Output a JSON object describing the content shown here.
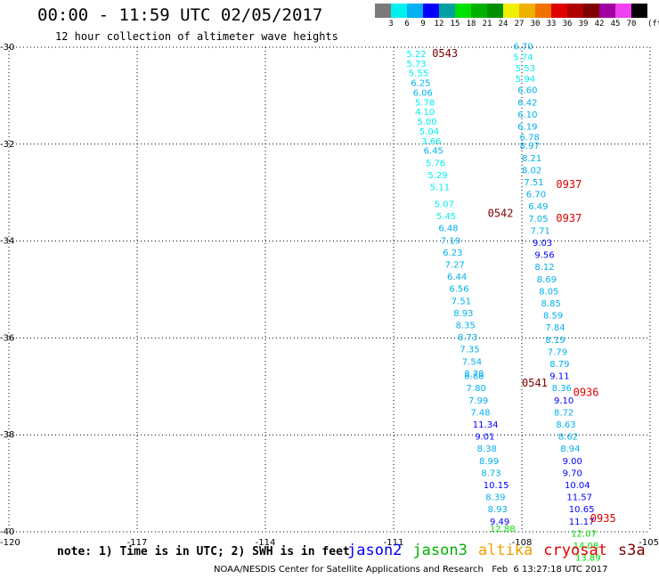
{
  "header": {
    "title": "00:00 - 11:59 UTC 02/05/2017",
    "subtitle": "12 hour collection of altimeter wave heights"
  },
  "color_scale": {
    "labels": [
      "3",
      "6",
      "9",
      "12",
      "15",
      "18",
      "21",
      "24",
      "27",
      "30",
      "33",
      "36",
      "39",
      "42",
      "45",
      "70"
    ],
    "unit": "(ft)",
    "colors": [
      "#7a7a7a",
      "#00f0f0",
      "#00b0f0",
      "#0000ff",
      "#00a0a0",
      "#00e000",
      "#00b000",
      "#009000",
      "#f0f000",
      "#f0b000",
      "#f07000",
      "#e00000",
      "#b00000",
      "#800000",
      "#a000a0",
      "#f040f0",
      "#000000"
    ]
  },
  "footer": {
    "note": "note: 1) Time is in UTC; 2) SWH is in feet",
    "credit": "NOAA/NESDIS Center for Satellite Applications and Research   Feb  6 13:27:18 UTC 2017"
  },
  "legend": [
    {
      "name": "jason2",
      "color": "#0000ff"
    },
    {
      "name": "jason3",
      "color": "#00b000"
    },
    {
      "name": "altika",
      "color": "#f0a000"
    },
    {
      "name": "cryosat",
      "color": "#e00000"
    },
    {
      "name": "s3a",
      "color": "#800000"
    }
  ],
  "chart_data": {
    "type": "scatter",
    "x_ticks": [
      "-120",
      "-117",
      "-114",
      "-111",
      "-108",
      "-105"
    ],
    "y_ticks": [
      "-30",
      "-32",
      "-34",
      "-36",
      "-38",
      "-40"
    ],
    "xlim": [
      -120,
      -105
    ],
    "ylim": [
      -40,
      -30
    ],
    "grid": true,
    "time_labels": [
      {
        "text": "0543",
        "lon": -110.1,
        "lat": -30.2,
        "color": "#800000"
      },
      {
        "text": "0542",
        "lon": -108.8,
        "lat": -33.5,
        "color": "#800000"
      },
      {
        "text": "0541",
        "lon": -108.0,
        "lat": -37.0,
        "color": "#800000"
      },
      {
        "text": "0937",
        "lon": -107.2,
        "lat": -32.9,
        "color": "#e00000"
      },
      {
        "text": "0937",
        "lon": -107.2,
        "lat": -33.6,
        "color": "#e00000"
      },
      {
        "text": "0936",
        "lon": -106.8,
        "lat": -37.2,
        "color": "#e00000"
      },
      {
        "text": "0935",
        "lon": -106.4,
        "lat": -39.8,
        "color": "#e00000"
      }
    ],
    "series": [
      {
        "name": "s3a",
        "points": [
          {
            "lon": -110.7,
            "lat": -30.2,
            "v": "5.22",
            "c": "#00f0f0"
          },
          {
            "lon": -110.7,
            "lat": -30.4,
            "v": "5.73",
            "c": "#00f0f0"
          },
          {
            "lon": -110.65,
            "lat": -30.6,
            "v": "5.55",
            "c": "#00f0f0"
          },
          {
            "lon": -110.6,
            "lat": -30.8,
            "v": "6.25",
            "c": "#00b0f0"
          },
          {
            "lon": -110.55,
            "lat": -31.0,
            "v": "6.06",
            "c": "#00b0f0"
          },
          {
            "lon": -110.5,
            "lat": -31.2,
            "v": "5.78",
            "c": "#00f0f0"
          },
          {
            "lon": -110.5,
            "lat": -31.4,
            "v": "4.10",
            "c": "#00f0f0"
          },
          {
            "lon": -110.45,
            "lat": -31.6,
            "v": "5.00",
            "c": "#00f0f0"
          },
          {
            "lon": -110.4,
            "lat": -31.8,
            "v": "5.04",
            "c": "#00f0f0"
          },
          {
            "lon": -110.35,
            "lat": -32.0,
            "v": "3.66",
            "c": "#00f0f0"
          },
          {
            "lon": -110.3,
            "lat": -32.2,
            "v": "6.45",
            "c": "#00b0f0"
          },
          {
            "lon": -110.25,
            "lat": -32.45,
            "v": "5.76",
            "c": "#00f0f0"
          },
          {
            "lon": -110.2,
            "lat": -32.7,
            "v": "5.29",
            "c": "#00f0f0"
          },
          {
            "lon": -110.15,
            "lat": -32.95,
            "v": "5.11",
            "c": "#00f0f0"
          },
          {
            "lon": -110.05,
            "lat": -33.3,
            "v": "5.07",
            "c": "#00f0f0"
          },
          {
            "lon": -110.0,
            "lat": -33.55,
            "v": "5.45",
            "c": "#00f0f0"
          },
          {
            "lon": -109.95,
            "lat": -33.8,
            "v": "6.48",
            "c": "#00b0f0"
          },
          {
            "lon": -109.9,
            "lat": -34.05,
            "v": "7.19",
            "c": "#00b0f0"
          },
          {
            "lon": -109.85,
            "lat": -34.3,
            "v": "6.23",
            "c": "#00b0f0"
          },
          {
            "lon": -109.8,
            "lat": -34.55,
            "v": "7.27",
            "c": "#00b0f0"
          },
          {
            "lon": -109.75,
            "lat": -34.8,
            "v": "6.44",
            "c": "#00b0f0"
          },
          {
            "lon": -109.7,
            "lat": -35.05,
            "v": "6.56",
            "c": "#00b0f0"
          },
          {
            "lon": -109.65,
            "lat": -35.3,
            "v": "7.51",
            "c": "#00b0f0"
          },
          {
            "lon": -109.6,
            "lat": -35.55,
            "v": "8.93",
            "c": "#00b0f0"
          },
          {
            "lon": -109.55,
            "lat": -35.8,
            "v": "8.35",
            "c": "#00b0f0"
          },
          {
            "lon": -109.5,
            "lat": -36.05,
            "v": "8.73",
            "c": "#00b0f0"
          },
          {
            "lon": -109.45,
            "lat": -36.3,
            "v": "7.35",
            "c": "#00b0f0"
          },
          {
            "lon": -109.4,
            "lat": -36.55,
            "v": "7.54",
            "c": "#00b0f0"
          },
          {
            "lon": -109.35,
            "lat": -36.8,
            "v": "8.78",
            "c": "#00b0f0"
          },
          {
            "lon": -109.35,
            "lat": -36.85,
            "v": "8.88",
            "c": "#00b0f0"
          },
          {
            "lon": -109.3,
            "lat": -37.1,
            "v": "7.80",
            "c": "#00b0f0"
          },
          {
            "lon": -109.25,
            "lat": -37.35,
            "v": "7.99",
            "c": "#00b0f0"
          },
          {
            "lon": -109.2,
            "lat": -37.6,
            "v": "7.48",
            "c": "#00b0f0"
          },
          {
            "lon": -109.15,
            "lat": -37.85,
            "v": "11.34",
            "c": "#0000ff"
          },
          {
            "lon": -109.1,
            "lat": -38.1,
            "v": "9.01",
            "c": "#0000ff"
          },
          {
            "lon": -109.05,
            "lat": -38.35,
            "v": "8.38",
            "c": "#00b0f0"
          },
          {
            "lon": -109.0,
            "lat": -38.6,
            "v": "8.99",
            "c": "#00b0f0"
          },
          {
            "lon": -108.95,
            "lat": -38.85,
            "v": "8.73",
            "c": "#00b0f0"
          },
          {
            "lon": -108.9,
            "lat": -39.1,
            "v": "10.15",
            "c": "#0000ff"
          },
          {
            "lon": -108.85,
            "lat": -39.35,
            "v": "8.39",
            "c": "#00b0f0"
          },
          {
            "lon": -108.8,
            "lat": -39.6,
            "v": "8.93",
            "c": "#00b0f0"
          },
          {
            "lon": -108.75,
            "lat": -39.85,
            "v": "9.49",
            "c": "#0000ff"
          },
          {
            "lon": -108.75,
            "lat": -40.0,
            "v": "12.88",
            "c": "#00e000"
          }
        ]
      },
      {
        "name": "cryosat",
        "points": [
          {
            "lon": -108.2,
            "lat": -30.05,
            "v": "6.70",
            "c": "#00b0f0"
          },
          {
            "lon": -108.2,
            "lat": -30.27,
            "v": "5.74",
            "c": "#00f0f0"
          },
          {
            "lon": -108.15,
            "lat": -30.5,
            "v": "5.53",
            "c": "#00f0f0"
          },
          {
            "lon": -108.15,
            "lat": -30.72,
            "v": "5.94",
            "c": "#00f0f0"
          },
          {
            "lon": -108.1,
            "lat": -30.95,
            "v": "6.60",
            "c": "#00b0f0"
          },
          {
            "lon": -108.1,
            "lat": -31.2,
            "v": "6.42",
            "c": "#00b0f0"
          },
          {
            "lon": -108.1,
            "lat": -31.45,
            "v": "6.10",
            "c": "#00b0f0"
          },
          {
            "lon": -108.1,
            "lat": -31.7,
            "v": "6.19",
            "c": "#00b0f0"
          },
          {
            "lon": -108.05,
            "lat": -31.92,
            "v": "6.78",
            "c": "#00b0f0"
          },
          {
            "lon": -108.05,
            "lat": -32.1,
            "v": "8.97",
            "c": "#00b0f0"
          },
          {
            "lon": -108.0,
            "lat": -32.35,
            "v": "8.21",
            "c": "#00b0f0"
          },
          {
            "lon": -108.0,
            "lat": -32.6,
            "v": "8.02",
            "c": "#00b0f0"
          },
          {
            "lon": -107.95,
            "lat": -32.85,
            "v": "7.51",
            "c": "#00b0f0"
          },
          {
            "lon": -107.9,
            "lat": -33.1,
            "v": "6.70",
            "c": "#00b0f0"
          },
          {
            "lon": -107.85,
            "lat": -33.35,
            "v": "6.49",
            "c": "#00b0f0"
          },
          {
            "lon": -107.85,
            "lat": -33.6,
            "v": "7.05",
            "c": "#00b0f0"
          },
          {
            "lon": -107.8,
            "lat": -33.85,
            "v": "7.71",
            "c": "#00b0f0"
          },
          {
            "lon": -107.75,
            "lat": -34.1,
            "v": "9.03",
            "c": "#0000ff"
          },
          {
            "lon": -107.7,
            "lat": -34.35,
            "v": "9.56",
            "c": "#0000ff"
          },
          {
            "lon": -107.7,
            "lat": -34.6,
            "v": "8.12",
            "c": "#00b0f0"
          },
          {
            "lon": -107.65,
            "lat": -34.85,
            "v": "8.69",
            "c": "#00b0f0"
          },
          {
            "lon": -107.6,
            "lat": -35.1,
            "v": "8.05",
            "c": "#00b0f0"
          },
          {
            "lon": -107.55,
            "lat": -35.35,
            "v": "8.85",
            "c": "#00b0f0"
          },
          {
            "lon": -107.5,
            "lat": -35.6,
            "v": "8.59",
            "c": "#00b0f0"
          },
          {
            "lon": -107.45,
            "lat": -35.85,
            "v": "7.84",
            "c": "#00b0f0"
          },
          {
            "lon": -107.45,
            "lat": -36.1,
            "v": "8.19",
            "c": "#00b0f0"
          },
          {
            "lon": -107.4,
            "lat": -36.35,
            "v": "7.79",
            "c": "#00b0f0"
          },
          {
            "lon": -107.35,
            "lat": -36.6,
            "v": "8.79",
            "c": "#00b0f0"
          },
          {
            "lon": -107.35,
            "lat": -36.85,
            "v": "9.11",
            "c": "#0000ff"
          },
          {
            "lon": -107.3,
            "lat": -37.1,
            "v": "8.36",
            "c": "#00b0f0"
          },
          {
            "lon": -107.25,
            "lat": -37.35,
            "v": "9.10",
            "c": "#0000ff"
          },
          {
            "lon": -107.25,
            "lat": -37.6,
            "v": "8.72",
            "c": "#00b0f0"
          },
          {
            "lon": -107.2,
            "lat": -37.85,
            "v": "8.63",
            "c": "#00b0f0"
          },
          {
            "lon": -107.15,
            "lat": -38.1,
            "v": "8.62",
            "c": "#00b0f0"
          },
          {
            "lon": -107.1,
            "lat": -38.35,
            "v": "8.94",
            "c": "#00b0f0"
          },
          {
            "lon": -107.05,
            "lat": -38.6,
            "v": "9.00",
            "c": "#0000ff"
          },
          {
            "lon": -107.05,
            "lat": -38.85,
            "v": "9.70",
            "c": "#0000ff"
          },
          {
            "lon": -107.0,
            "lat": -39.1,
            "v": "10.04",
            "c": "#0000ff"
          },
          {
            "lon": -106.95,
            "lat": -39.35,
            "v": "11.57",
            "c": "#0000ff"
          },
          {
            "lon": -106.9,
            "lat": -39.6,
            "v": "10.65",
            "c": "#0000ff"
          },
          {
            "lon": -106.9,
            "lat": -39.85,
            "v": "11.17",
            "c": "#0000ff"
          },
          {
            "lon": -106.85,
            "lat": -40.1,
            "v": "12.07",
            "c": "#00e000"
          },
          {
            "lon": -106.8,
            "lat": -40.35,
            "v": "14.08",
            "c": "#00e000"
          },
          {
            "lon": -106.75,
            "lat": -40.6,
            "v": "13.89",
            "c": "#00e000"
          }
        ]
      }
    ]
  }
}
